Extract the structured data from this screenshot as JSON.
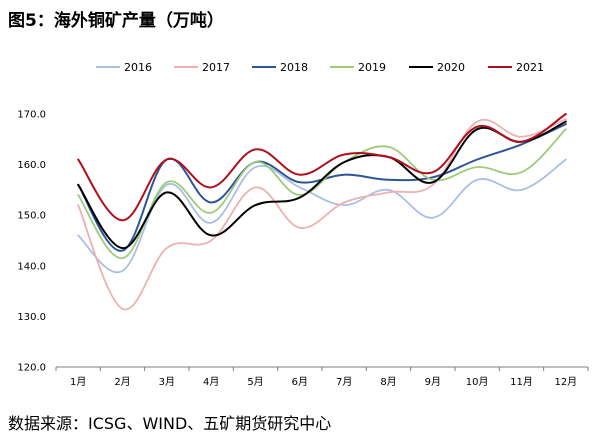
{
  "title": "图5：海外铜矿产量（万吨）",
  "source": "数据来源：ICSG、WIND、五矿期货研究中心",
  "chart_data": {
    "type": "line",
    "categories": [
      "1月",
      "2月",
      "3月",
      "4月",
      "5月",
      "6月",
      "7月",
      "8月",
      "9月",
      "10月",
      "11月",
      "12月"
    ],
    "ylim": [
      120,
      170
    ],
    "yticks": [
      "120.0",
      "130.0",
      "140.0",
      "150.0",
      "160.0",
      "170.0"
    ],
    "grid": false,
    "legend_position": "top",
    "series": [
      {
        "name": "2016",
        "color": "#A9BFE3",
        "values": [
          146.0,
          139.0,
          156.0,
          148.5,
          159.5,
          155.5,
          152.0,
          155.0,
          149.5,
          157.0,
          155.0,
          161.0
        ]
      },
      {
        "name": "2017",
        "color": "#EEB0B0",
        "values": [
          152.0,
          131.5,
          143.5,
          145.0,
          155.5,
          147.5,
          152.5,
          154.5,
          156.0,
          168.5,
          165.5,
          169.0
        ]
      },
      {
        "name": "2018",
        "color": "#2E5597",
        "values": [
          156.0,
          143.0,
          161.0,
          152.5,
          160.5,
          156.5,
          158.0,
          157.0,
          157.5,
          161.0,
          164.0,
          168.0
        ]
      },
      {
        "name": "2019",
        "color": "#9CCB7A",
        "values": [
          154.0,
          141.5,
          156.5,
          150.5,
          160.5,
          154.0,
          160.5,
          163.5,
          157.0,
          159.5,
          158.5,
          167.0
        ]
      },
      {
        "name": "2020",
        "color": "#000000",
        "values": [
          156.0,
          143.5,
          154.5,
          146.0,
          152.0,
          153.5,
          160.5,
          161.5,
          156.5,
          167.0,
          164.5,
          168.5
        ]
      },
      {
        "name": "2021",
        "color": "#B0101E",
        "values": [
          161.0,
          149.0,
          161.0,
          155.5,
          163.0,
          158.0,
          162.0,
          161.5,
          158.5,
          167.5,
          164.5,
          170.0
        ]
      }
    ]
  }
}
